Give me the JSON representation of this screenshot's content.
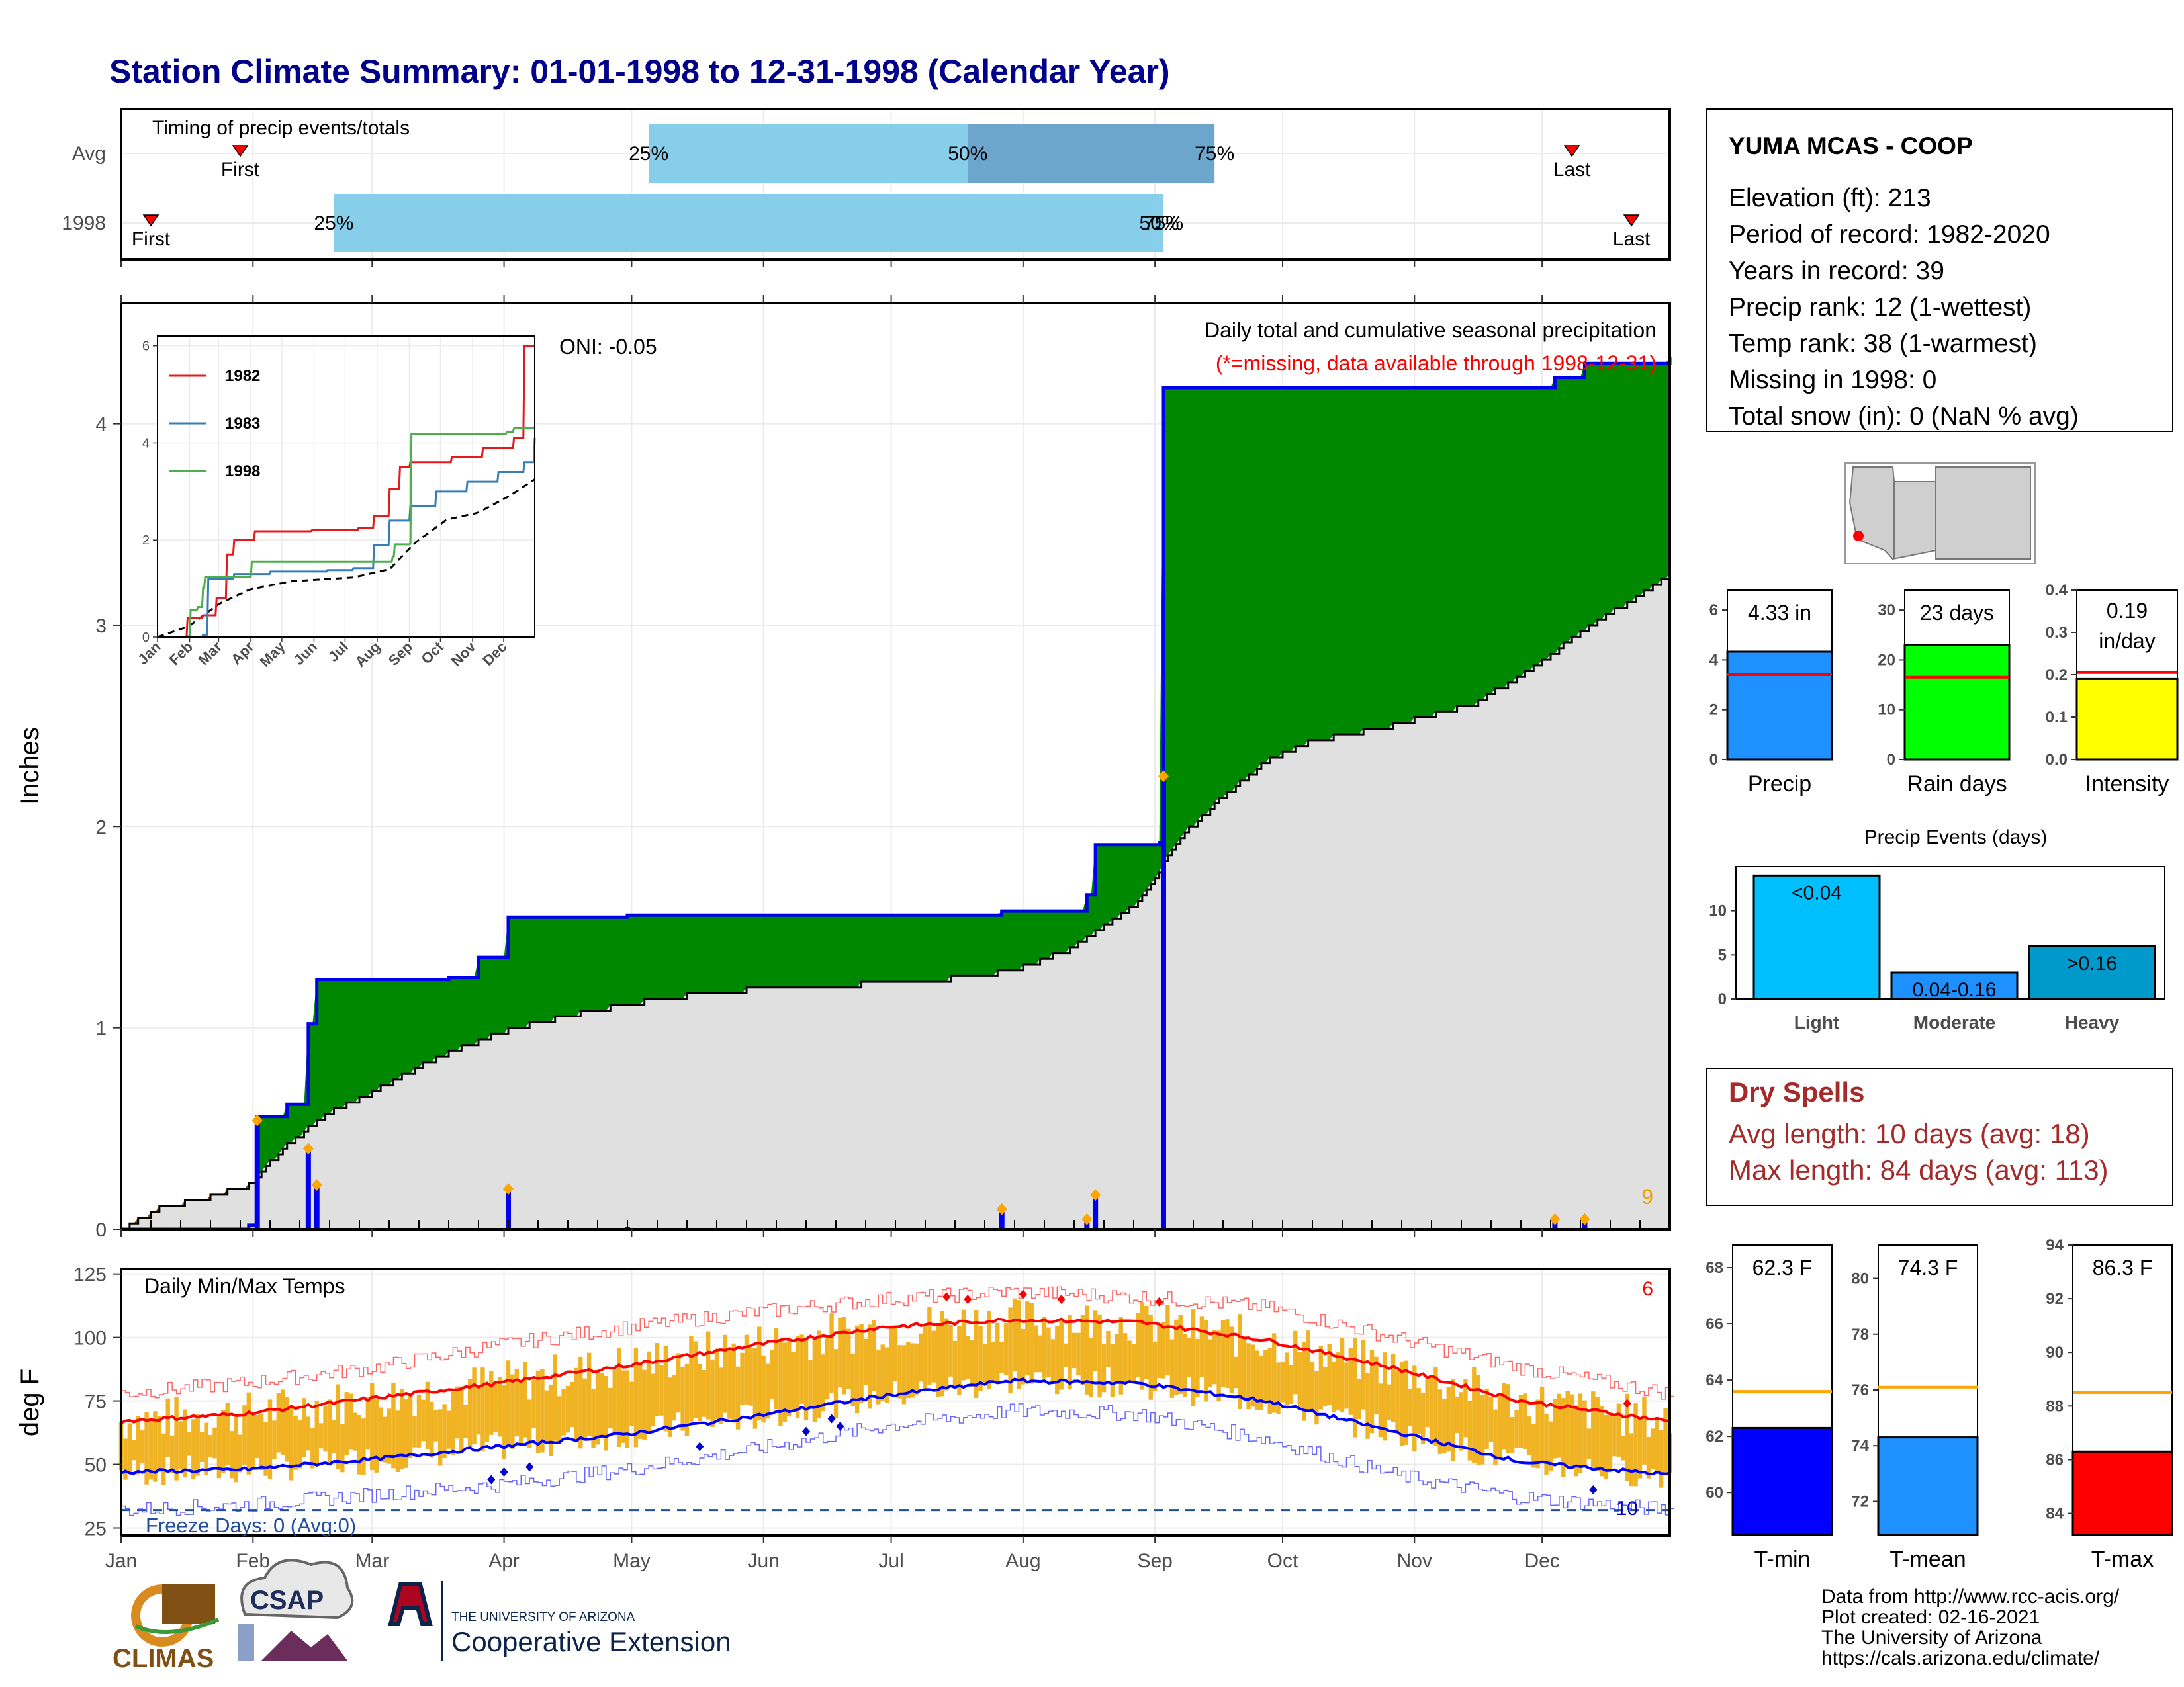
{
  "title": "Station Climate Summary: 01-01-1998 to 12-31-1998 (Calendar Year)",
  "colors": {
    "title": "#00008B",
    "blue_line": "#0000EE",
    "green_fill": "#008800",
    "brown_fill": "#7F4F14",
    "gray_fill": "#E0E0E0",
    "orange": "#F0B323",
    "dry_red": "#A52A2A"
  },
  "timing": {
    "label": "Timing of precip events/totals",
    "rows": [
      {
        "name": "Avg",
        "first_doy": 29,
        "p25_doy": 125,
        "p50_doy": 200,
        "p75_doy": 258,
        "last_doy": 342,
        "first_label": "First",
        "p25_label": "25%",
        "p50_label": "50%",
        "p75_label": "75%",
        "last_label": "Last"
      },
      {
        "name": "1998",
        "first_doy": 8,
        "p25_doy": 51,
        "p50_doy": 245,
        "p75_doy": 246,
        "last_doy": 356,
        "first_label": "First",
        "p25_label": "25%",
        "p50_label": "50%",
        "p75_label": "75%",
        "last_label": "Last"
      }
    ]
  },
  "station": {
    "name": "YUMA MCAS - COOP",
    "lines": [
      "Elevation (ft): 213",
      "Period of record: 1982-2020",
      "Years in record: 39",
      "Precip rank: 12 (1-wettest)",
      "Temp rank: 38 (1-warmest)",
      "Missing in 1998: 0",
      "Total snow (in): 0 (NaN % avg)"
    ]
  },
  "precip_panel": {
    "ylabel": "Inches",
    "ylim": [
      0,
      4.6
    ],
    "yticks": [
      0,
      1,
      2,
      3,
      4
    ],
    "oni": "ONI: -0.05",
    "title_line": "Daily total and cumulative seasonal precipitation",
    "missing_line": "(*=missing, data available through 1998-12-31)",
    "corner_count": "9"
  },
  "inset": {
    "ylim": [
      0,
      6.2
    ],
    "yticks": [
      0,
      2,
      4,
      6
    ],
    "months": [
      "Jan",
      "Feb",
      "Mar",
      "Apr",
      "May",
      "Jun",
      "Jul",
      "Aug",
      "Sep",
      "Oct",
      "Nov",
      "Dec"
    ],
    "legend": [
      {
        "name": "1982",
        "color": "#E41A1C"
      },
      {
        "name": "1983",
        "color": "#377EB8"
      },
      {
        "name": "1998",
        "color": "#4DAF4A"
      }
    ]
  },
  "temp_panel": {
    "ylabel": "deg F",
    "label": "Daily Min/Max Temps",
    "ylim": [
      22,
      127
    ],
    "yticks": [
      25,
      50,
      75,
      100,
      125
    ],
    "freeze_label": "Freeze Days: 0 (Avg:0)",
    "freeze_line": 32,
    "count_hot": "6",
    "count_cold": "10"
  },
  "months": [
    "Jan",
    "Feb",
    "Mar",
    "Apr",
    "May",
    "Jun",
    "Jul",
    "Aug",
    "Sep",
    "Oct",
    "Nov",
    "Dec"
  ],
  "bars_precip": [
    {
      "label": "Precip",
      "value": 4.33,
      "avg": 3.4,
      "text": "4.33 in",
      "color": "#1E90FF",
      "ylim": [
        0,
        6.8
      ],
      "ticks": [
        0,
        2,
        4,
        6
      ]
    },
    {
      "label": "Rain days",
      "value": 23,
      "avg": 16.5,
      "text": "23 days",
      "color": "#00FF00",
      "ylim": [
        0,
        34
      ],
      "ticks": [
        0,
        10,
        20,
        30
      ]
    },
    {
      "label": "Intensity",
      "value": 0.19,
      "avg": 0.205,
      "text": "0.19",
      "text2": "in/day",
      "color": "#FFFF00",
      "ylim": [
        0,
        0.4
      ],
      "ticks": [
        0.0,
        0.1,
        0.2,
        0.3,
        0.4
      ]
    }
  ],
  "events": {
    "title": "Precip Events (days)",
    "ylim": [
      0,
      15
    ],
    "ticks": [
      0,
      5,
      10
    ],
    "bars": [
      {
        "cat": "Light",
        "value": 14,
        "text": "<0.04",
        "color": "#00BFFF"
      },
      {
        "cat": "Moderate",
        "value": 3,
        "text": "0.04-0.16",
        "color": "#1E90FF"
      },
      {
        "cat": "Heavy",
        "value": 6,
        "text": ">0.16",
        "color": "#0099CC"
      }
    ]
  },
  "dry": {
    "title": "Dry Spells",
    "avg_line": "Avg length: 10 days (avg: 18)",
    "max_line": "Max length: 84 days (avg: 113)"
  },
  "temp_bars": [
    {
      "label": "T-min",
      "value": 62.3,
      "avg": 63.6,
      "text": "62.3 F",
      "color": "#0000FF",
      "ylim": [
        58.5,
        68.8
      ],
      "ticks": [
        60,
        62,
        64,
        66,
        68
      ]
    },
    {
      "label": "T-mean",
      "value": 74.3,
      "avg": 76.1,
      "text": "74.3 F",
      "color": "#1E90FF",
      "ylim": [
        70.8,
        81.2
      ],
      "ticks": [
        72,
        74,
        76,
        78,
        80
      ]
    },
    {
      "label": "T-max",
      "value": 86.3,
      "avg": 88.5,
      "text": "86.3 F",
      "color": "#FF0000",
      "ylim": [
        83.2,
        94
      ],
      "ticks": [
        84,
        86,
        88,
        90,
        92,
        94
      ]
    }
  ],
  "chart_data": {
    "type": "area",
    "title": "Daily total and cumulative seasonal precipitation",
    "ylabel": "Inches",
    "x_unit": "day of year 1998",
    "precip_events": [
      {
        "doy": 33,
        "in": 0.54
      },
      {
        "doy": 45,
        "in": 0.4
      },
      {
        "doy": 47,
        "in": 0.22
      },
      {
        "doy": 92,
        "in": 0.2
      },
      {
        "doy": 120,
        "in": 0.01
      },
      {
        "doy": 208,
        "in": 0.1
      },
      {
        "doy": 228,
        "in": 0.05
      },
      {
        "doy": 230,
        "in": 0.17
      },
      {
        "doy": 246,
        "in": 2.25
      },
      {
        "doy": 338,
        "in": 0.05
      },
      {
        "doy": 345,
        "in": 0.05
      }
    ],
    "cum_1998": [
      [
        1,
        0.0
      ],
      [
        31,
        0.02
      ],
      [
        33,
        0.56
      ],
      [
        40,
        0.62
      ],
      [
        45,
        1.02
      ],
      [
        47,
        1.24
      ],
      [
        78,
        1.25
      ],
      [
        85,
        1.35
      ],
      [
        92,
        1.55
      ],
      [
        120,
        1.56
      ],
      [
        208,
        1.58
      ],
      [
        228,
        1.66
      ],
      [
        230,
        1.91
      ],
      [
        245,
        1.92
      ],
      [
        246,
        4.18
      ],
      [
        338,
        4.23
      ],
      [
        345,
        4.3
      ],
      [
        365,
        4.33
      ]
    ],
    "avg_cum": [
      [
        1,
        0.0
      ],
      [
        10,
        0.1
      ],
      [
        20,
        0.15
      ],
      [
        31,
        0.22
      ],
      [
        40,
        0.42
      ],
      [
        50,
        0.58
      ],
      [
        60,
        0.68
      ],
      [
        75,
        0.85
      ],
      [
        90,
        0.98
      ],
      [
        110,
        1.08
      ],
      [
        130,
        1.15
      ],
      [
        150,
        1.19
      ],
      [
        170,
        1.21
      ],
      [
        190,
        1.23
      ],
      [
        210,
        1.28
      ],
      [
        225,
        1.4
      ],
      [
        240,
        1.62
      ],
      [
        250,
        1.95
      ],
      [
        260,
        2.15
      ],
      [
        270,
        2.32
      ],
      [
        280,
        2.42
      ],
      [
        290,
        2.46
      ],
      [
        300,
        2.5
      ],
      [
        310,
        2.56
      ],
      [
        320,
        2.62
      ],
      [
        330,
        2.75
      ],
      [
        340,
        2.9
      ],
      [
        350,
        3.05
      ],
      [
        358,
        3.15
      ],
      [
        365,
        3.25
      ]
    ],
    "inset_series": {
      "1982": [
        [
          1,
          0.0
        ],
        [
          30,
          0.4
        ],
        [
          45,
          0.45
        ],
        [
          58,
          0.8
        ],
        [
          68,
          1.7
        ],
        [
          75,
          2.0
        ],
        [
          95,
          2.18
        ],
        [
          150,
          2.2
        ],
        [
          195,
          2.25
        ],
        [
          210,
          2.5
        ],
        [
          225,
          3.05
        ],
        [
          235,
          3.5
        ],
        [
          245,
          3.6
        ],
        [
          285,
          3.7
        ],
        [
          315,
          3.9
        ],
        [
          345,
          4.1
        ],
        [
          355,
          6.0
        ],
        [
          365,
          6.0
        ]
      ],
      "1983": [
        [
          1,
          0.0
        ],
        [
          45,
          0.05
        ],
        [
          50,
          1.2
        ],
        [
          75,
          1.3
        ],
        [
          110,
          1.35
        ],
        [
          165,
          1.38
        ],
        [
          190,
          1.42
        ],
        [
          210,
          1.9
        ],
        [
          225,
          2.4
        ],
        [
          245,
          2.7
        ],
        [
          270,
          3.0
        ],
        [
          300,
          3.2
        ],
        [
          330,
          3.4
        ],
        [
          355,
          3.6
        ],
        [
          365,
          4.1
        ]
      ],
      "1998": [
        [
          1,
          0.0
        ],
        [
          31,
          0.02
        ],
        [
          33,
          0.56
        ],
        [
          40,
          0.62
        ],
        [
          45,
          1.02
        ],
        [
          47,
          1.24
        ],
        [
          92,
          1.55
        ],
        [
          228,
          1.66
        ],
        [
          230,
          1.91
        ],
        [
          245,
          1.92
        ],
        [
          246,
          4.18
        ],
        [
          338,
          4.23
        ],
        [
          345,
          4.3
        ],
        [
          365,
          4.33
        ]
      ],
      "avg": [
        [
          1,
          0.0
        ],
        [
          31,
          0.22
        ],
        [
          60,
          0.68
        ],
        [
          90,
          0.98
        ],
        [
          130,
          1.15
        ],
        [
          190,
          1.23
        ],
        [
          225,
          1.4
        ],
        [
          250,
          1.95
        ],
        [
          280,
          2.42
        ],
        [
          310,
          2.56
        ],
        [
          340,
          2.9
        ],
        [
          365,
          3.25
        ]
      ]
    },
    "temp_anchors": {
      "avg_max": [
        [
          1,
          67
        ],
        [
          30,
          70
        ],
        [
          60,
          76
        ],
        [
          90,
          82
        ],
        [
          120,
          89
        ],
        [
          150,
          97
        ],
        [
          180,
          104
        ],
        [
          210,
          107
        ],
        [
          240,
          106
        ],
        [
          270,
          99
        ],
        [
          300,
          88
        ],
        [
          330,
          75
        ],
        [
          365,
          67
        ]
      ],
      "avg_min": [
        [
          1,
          47
        ],
        [
          30,
          48
        ],
        [
          60,
          52
        ],
        [
          90,
          57
        ],
        [
          120,
          62
        ],
        [
          150,
          69
        ],
        [
          180,
          77
        ],
        [
          210,
          83
        ],
        [
          240,
          82
        ],
        [
          270,
          75
        ],
        [
          300,
          63
        ],
        [
          330,
          51
        ],
        [
          365,
          46
        ]
      ],
      "rec_max": [
        [
          1,
          78
        ],
        [
          30,
          82
        ],
        [
          60,
          88
        ],
        [
          90,
          97
        ],
        [
          120,
          104
        ],
        [
          150,
          110
        ],
        [
          180,
          115
        ],
        [
          210,
          118
        ],
        [
          240,
          116
        ],
        [
          270,
          112
        ],
        [
          300,
          100
        ],
        [
          330,
          88
        ],
        [
          365,
          78
        ]
      ],
      "rec_min": [
        [
          1,
          32
        ],
        [
          30,
          34
        ],
        [
          60,
          38
        ],
        [
          90,
          42
        ],
        [
          120,
          48
        ],
        [
          150,
          56
        ],
        [
          180,
          65
        ],
        [
          210,
          71
        ],
        [
          240,
          70
        ],
        [
          270,
          60
        ],
        [
          300,
          46
        ],
        [
          330,
          37
        ],
        [
          365,
          32
        ]
      ]
    }
  },
  "footer": {
    "lines": [
      "Data from http://www.rcc-acis.org/",
      "Plot created: 02-16-2021",
      "The University of Arizona",
      "https://cals.arizona.edu/climate/"
    ],
    "climas": "CLIMAS",
    "csap": "CSAP",
    "ua_small": "THE UNIVERSITY OF ARIZONA",
    "ua_big": "Cooperative Extension"
  }
}
